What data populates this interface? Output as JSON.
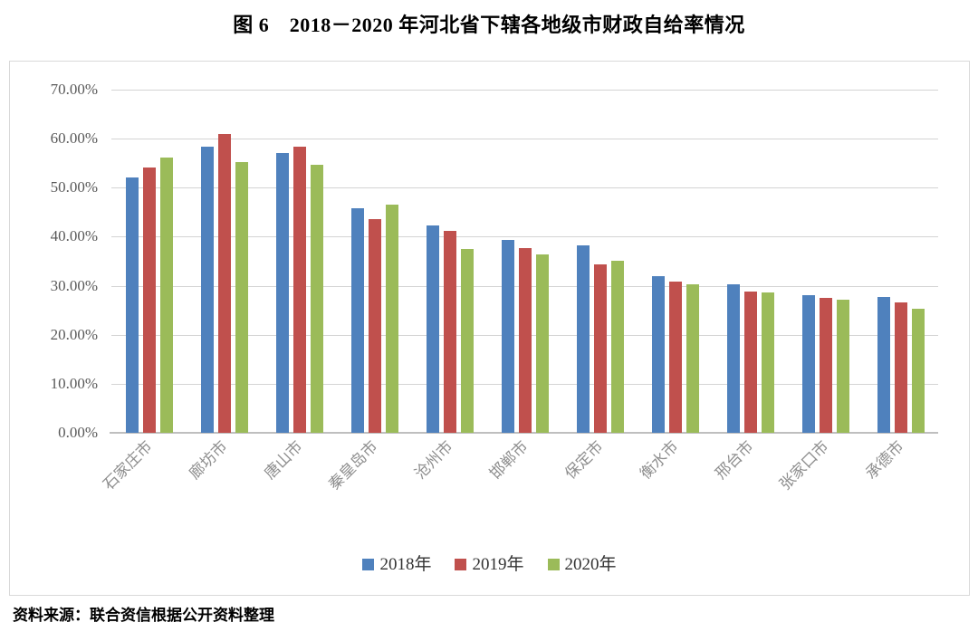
{
  "figure": {
    "title": "图 6　2018－2020 年河北省下辖各地级市财政自给率情况",
    "source": "资料来源：联合资信根据公开资料整理"
  },
  "colors": {
    "bar_2018": "#4F81BD",
    "bar_2019": "#C0504D",
    "bar_2020": "#9BBB59",
    "gridline": "#D4D4D4",
    "axis_line": "#BFBFBF",
    "y_label_text": "#595959",
    "x_label_text": "#8E8E8E",
    "legend_text": "#333333",
    "frame_border": "#D9D9D9"
  },
  "chart_data": {
    "type": "bar",
    "title": "图 6　2018－2020 年河北省下辖各地级市财政自给率情况",
    "categories": [
      "石家庄市",
      "廊坊市",
      "唐山市",
      "秦皇岛市",
      "沧州市",
      "邯郸市",
      "保定市",
      "衡水市",
      "邢台市",
      "张家口市",
      "承德市"
    ],
    "series": [
      {
        "name": "2018年",
        "color": "#4F81BD",
        "values": [
          52.1,
          58.4,
          57.0,
          45.8,
          42.3,
          39.3,
          38.3,
          32.0,
          30.3,
          28.0,
          27.7
        ]
      },
      {
        "name": "2019年",
        "color": "#C0504D",
        "values": [
          54.1,
          60.9,
          58.4,
          43.5,
          41.2,
          37.7,
          34.3,
          30.8,
          28.9,
          27.5,
          26.6
        ]
      },
      {
        "name": "2020年",
        "color": "#9BBB59",
        "values": [
          56.2,
          55.2,
          54.7,
          46.6,
          37.5,
          36.4,
          35.1,
          30.3,
          28.7,
          27.1,
          25.3
        ]
      }
    ],
    "unit": "%",
    "ylim": [
      0,
      70
    ],
    "ytick_step": 10,
    "ytick_labels": [
      "0.00%",
      "10.00%",
      "20.00%",
      "30.00%",
      "40.00%",
      "50.00%",
      "60.00%",
      "70.00%"
    ],
    "grid": true,
    "legend_position": "bottom",
    "legend_labels": [
      "2018年",
      "2019年",
      "2020年"
    ]
  }
}
